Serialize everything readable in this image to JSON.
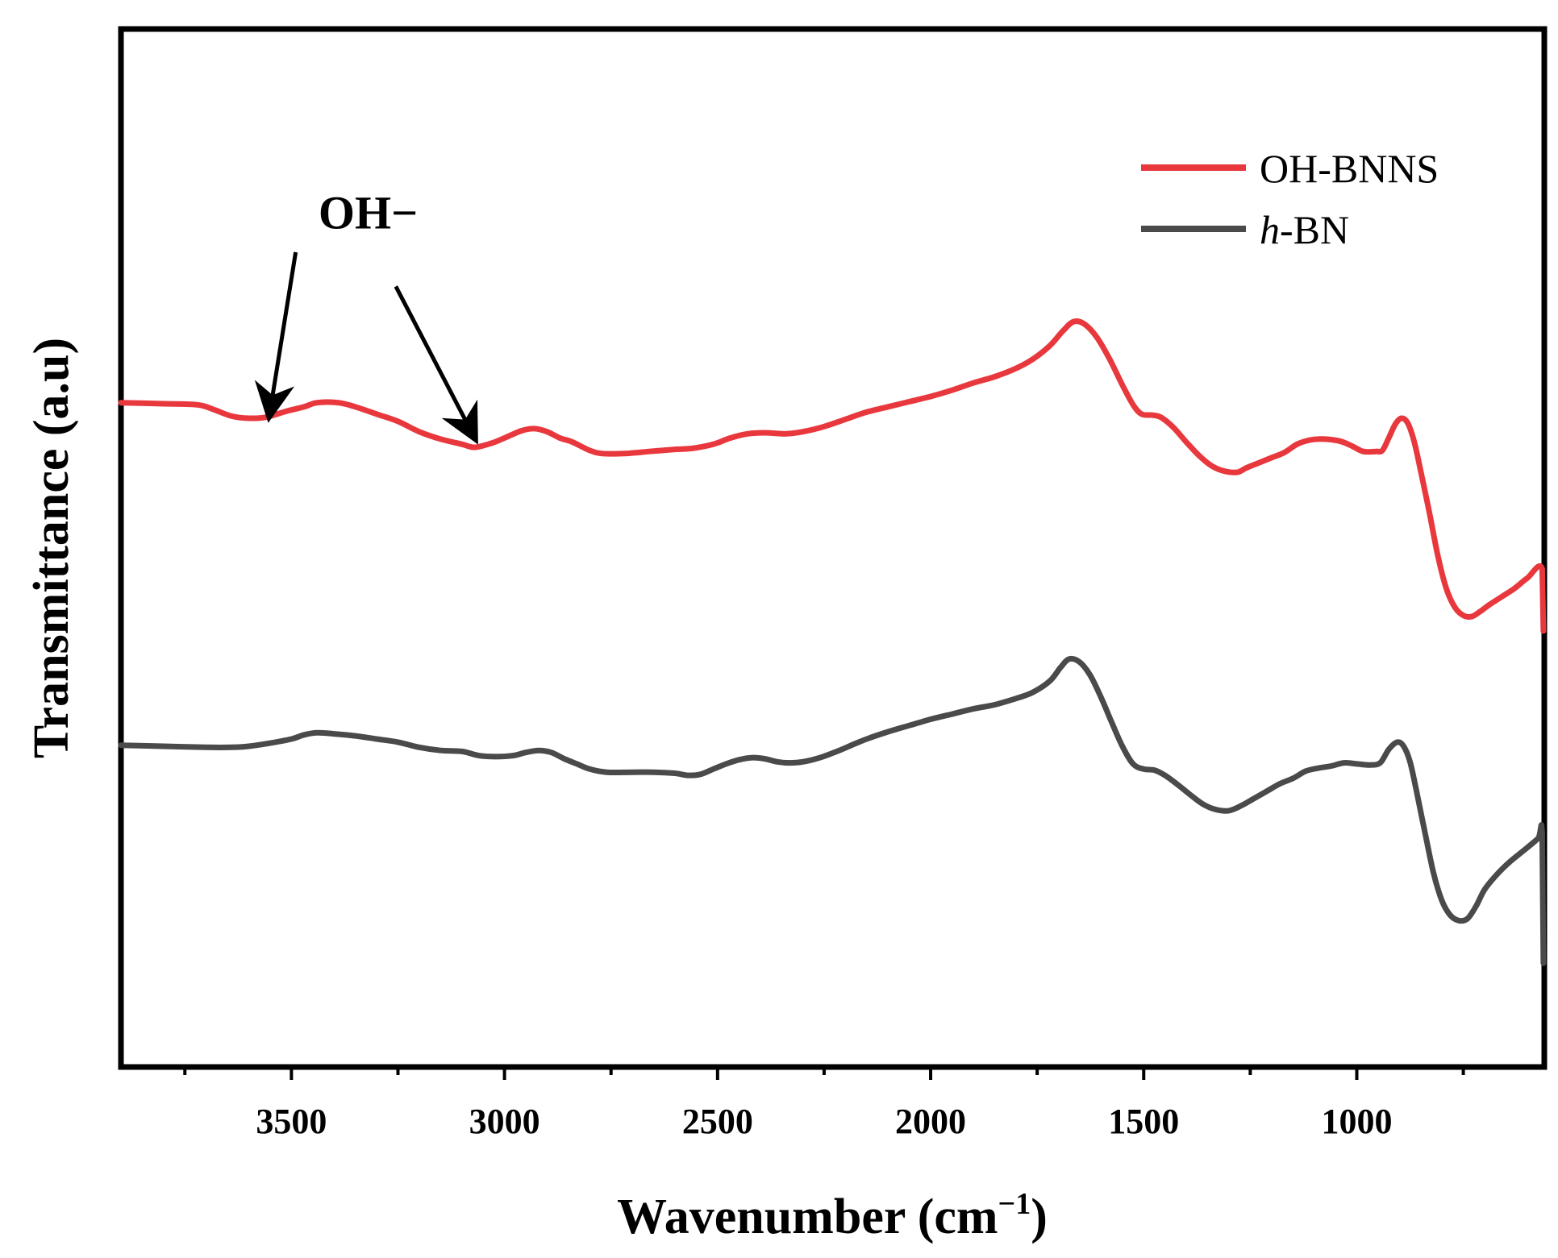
{
  "chart_data": {
    "type": "line",
    "title": "",
    "xlabel": "Wavenumber (cm",
    "xlabel_sup": "−1",
    "xlabel_close": ")",
    "ylabel": "Transmittance (a.u)",
    "xlim": [
      3900,
      560
    ],
    "ylim": [
      0,
      100
    ],
    "x_reversed": true,
    "grid": false,
    "legend_position": "top-right",
    "xticks": [
      {
        "value": 3500,
        "label": "3500"
      },
      {
        "value": 3000,
        "label": "3000"
      },
      {
        "value": 2500,
        "label": "2500"
      },
      {
        "value": 2000,
        "label": "2000"
      },
      {
        "value": 1500,
        "label": "1500"
      },
      {
        "value": 1000,
        "label": "1000"
      }
    ],
    "minor_xticks": [
      3750,
      3250,
      2750,
      2250,
      1750,
      1250,
      750
    ],
    "series": [
      {
        "name": "OH-BNNS",
        "color": "#e8383d",
        "points": [
          [
            3900,
            64.0
          ],
          [
            3800,
            63.9
          ],
          [
            3720,
            63.8
          ],
          [
            3680,
            63.3
          ],
          [
            3640,
            62.7
          ],
          [
            3600,
            62.5
          ],
          [
            3560,
            62.6
          ],
          [
            3510,
            63.2
          ],
          [
            3470,
            63.6
          ],
          [
            3440,
            64.0
          ],
          [
            3390,
            64.0
          ],
          [
            3350,
            63.6
          ],
          [
            3300,
            62.9
          ],
          [
            3250,
            62.2
          ],
          [
            3200,
            61.2
          ],
          [
            3150,
            60.5
          ],
          [
            3100,
            60.0
          ],
          [
            3070,
            59.7
          ],
          [
            3030,
            60.1
          ],
          [
            3000,
            60.6
          ],
          [
            2960,
            61.3
          ],
          [
            2930,
            61.5
          ],
          [
            2900,
            61.2
          ],
          [
            2870,
            60.6
          ],
          [
            2840,
            60.2
          ],
          [
            2800,
            59.4
          ],
          [
            2770,
            59.1
          ],
          [
            2720,
            59.1
          ],
          [
            2660,
            59.3
          ],
          [
            2600,
            59.5
          ],
          [
            2560,
            59.6
          ],
          [
            2510,
            60.0
          ],
          [
            2470,
            60.6
          ],
          [
            2430,
            61.0
          ],
          [
            2390,
            61.1
          ],
          [
            2340,
            61.0
          ],
          [
            2300,
            61.2
          ],
          [
            2250,
            61.7
          ],
          [
            2200,
            62.4
          ],
          [
            2150,
            63.1
          ],
          [
            2100,
            63.6
          ],
          [
            2050,
            64.1
          ],
          [
            2000,
            64.6
          ],
          [
            1950,
            65.2
          ],
          [
            1900,
            65.9
          ],
          [
            1850,
            66.5
          ],
          [
            1800,
            67.3
          ],
          [
            1760,
            68.2
          ],
          [
            1720,
            69.5
          ],
          [
            1690,
            70.9
          ],
          [
            1665,
            71.8
          ],
          [
            1640,
            71.6
          ],
          [
            1610,
            70.3
          ],
          [
            1580,
            68.2
          ],
          [
            1550,
            65.7
          ],
          [
            1525,
            63.8
          ],
          [
            1505,
            62.9
          ],
          [
            1480,
            62.8
          ],
          [
            1460,
            62.6
          ],
          [
            1430,
            61.6
          ],
          [
            1400,
            60.2
          ],
          [
            1370,
            58.9
          ],
          [
            1340,
            57.9
          ],
          [
            1310,
            57.4
          ],
          [
            1280,
            57.3
          ],
          [
            1260,
            57.7
          ],
          [
            1230,
            58.2
          ],
          [
            1200,
            58.7
          ],
          [
            1170,
            59.2
          ],
          [
            1140,
            60.0
          ],
          [
            1110,
            60.4
          ],
          [
            1080,
            60.5
          ],
          [
            1040,
            60.3
          ],
          [
            1010,
            59.8
          ],
          [
            985,
            59.3
          ],
          [
            955,
            59.3
          ],
          [
            940,
            59.4
          ],
          [
            925,
            60.6
          ],
          [
            910,
            61.9
          ],
          [
            895,
            62.5
          ],
          [
            880,
            62.0
          ],
          [
            865,
            60.2
          ],
          [
            850,
            57.4
          ],
          [
            830,
            53.5
          ],
          [
            810,
            49.3
          ],
          [
            790,
            46.1
          ],
          [
            770,
            44.3
          ],
          [
            750,
            43.5
          ],
          [
            730,
            43.4
          ],
          [
            710,
            43.9
          ],
          [
            690,
            44.5
          ],
          [
            660,
            45.3
          ],
          [
            630,
            46.1
          ],
          [
            600,
            47.1
          ],
          [
            565,
            48.0
          ],
          [
            562,
            42.0
          ]
        ]
      },
      {
        "name": "h-BN",
        "color": "#4a4a4a",
        "points": [
          [
            3900,
            31.0
          ],
          [
            3800,
            30.9
          ],
          [
            3700,
            30.8
          ],
          [
            3640,
            30.8
          ],
          [
            3600,
            30.9
          ],
          [
            3550,
            31.2
          ],
          [
            3500,
            31.6
          ],
          [
            3470,
            32.0
          ],
          [
            3440,
            32.2
          ],
          [
            3400,
            32.1
          ],
          [
            3350,
            31.9
          ],
          [
            3300,
            31.6
          ],
          [
            3250,
            31.3
          ],
          [
            3200,
            30.8
          ],
          [
            3150,
            30.5
          ],
          [
            3100,
            30.4
          ],
          [
            3060,
            30.0
          ],
          [
            3020,
            29.9
          ],
          [
            2980,
            30.0
          ],
          [
            2950,
            30.3
          ],
          [
            2920,
            30.5
          ],
          [
            2890,
            30.3
          ],
          [
            2860,
            29.7
          ],
          [
            2830,
            29.2
          ],
          [
            2800,
            28.7
          ],
          [
            2760,
            28.4
          ],
          [
            2700,
            28.4
          ],
          [
            2650,
            28.4
          ],
          [
            2600,
            28.3
          ],
          [
            2570,
            28.1
          ],
          [
            2540,
            28.2
          ],
          [
            2510,
            28.7
          ],
          [
            2480,
            29.2
          ],
          [
            2450,
            29.6
          ],
          [
            2420,
            29.8
          ],
          [
            2390,
            29.7
          ],
          [
            2360,
            29.4
          ],
          [
            2330,
            29.3
          ],
          [
            2300,
            29.4
          ],
          [
            2260,
            29.8
          ],
          [
            2220,
            30.4
          ],
          [
            2180,
            31.1
          ],
          [
            2150,
            31.6
          ],
          [
            2100,
            32.3
          ],
          [
            2050,
            32.9
          ],
          [
            2000,
            33.5
          ],
          [
            1950,
            34.0
          ],
          [
            1900,
            34.5
          ],
          [
            1850,
            34.9
          ],
          [
            1800,
            35.5
          ],
          [
            1760,
            36.1
          ],
          [
            1720,
            37.2
          ],
          [
            1695,
            38.5
          ],
          [
            1675,
            39.3
          ],
          [
            1650,
            39.0
          ],
          [
            1625,
            37.7
          ],
          [
            1600,
            35.6
          ],
          [
            1575,
            33.2
          ],
          [
            1550,
            30.9
          ],
          [
            1525,
            29.2
          ],
          [
            1500,
            28.7
          ],
          [
            1475,
            28.6
          ],
          [
            1450,
            28.1
          ],
          [
            1420,
            27.2
          ],
          [
            1390,
            26.2
          ],
          [
            1360,
            25.3
          ],
          [
            1330,
            24.8
          ],
          [
            1300,
            24.7
          ],
          [
            1270,
            25.2
          ],
          [
            1240,
            25.9
          ],
          [
            1210,
            26.6
          ],
          [
            1180,
            27.3
          ],
          [
            1150,
            27.8
          ],
          [
            1120,
            28.5
          ],
          [
            1090,
            28.8
          ],
          [
            1060,
            29.0
          ],
          [
            1030,
            29.3
          ],
          [
            1000,
            29.2
          ],
          [
            970,
            29.1
          ],
          [
            945,
            29.3
          ],
          [
            925,
            30.6
          ],
          [
            905,
            31.3
          ],
          [
            890,
            30.9
          ],
          [
            875,
            29.4
          ],
          [
            860,
            26.6
          ],
          [
            840,
            22.6
          ],
          [
            820,
            18.7
          ],
          [
            800,
            16.0
          ],
          [
            780,
            14.6
          ],
          [
            760,
            14.1
          ],
          [
            740,
            14.3
          ],
          [
            720,
            15.5
          ],
          [
            700,
            17.1
          ],
          [
            670,
            18.6
          ],
          [
            640,
            19.8
          ],
          [
            610,
            20.8
          ],
          [
            575,
            22.0
          ],
          [
            565,
            22.5
          ],
          [
            562,
            10.0
          ]
        ]
      }
    ],
    "annotation": {
      "text": "OH−",
      "arrows": [
        {
          "from": [
            3490,
            78.5
          ],
          "to": [
            3550,
            63.2
          ]
        },
        {
          "from": [
            3255,
            75.2
          ],
          "to": [
            3075,
            61.0
          ]
        }
      ],
      "text_anchor": [
        3320,
        80.8
      ]
    }
  }
}
